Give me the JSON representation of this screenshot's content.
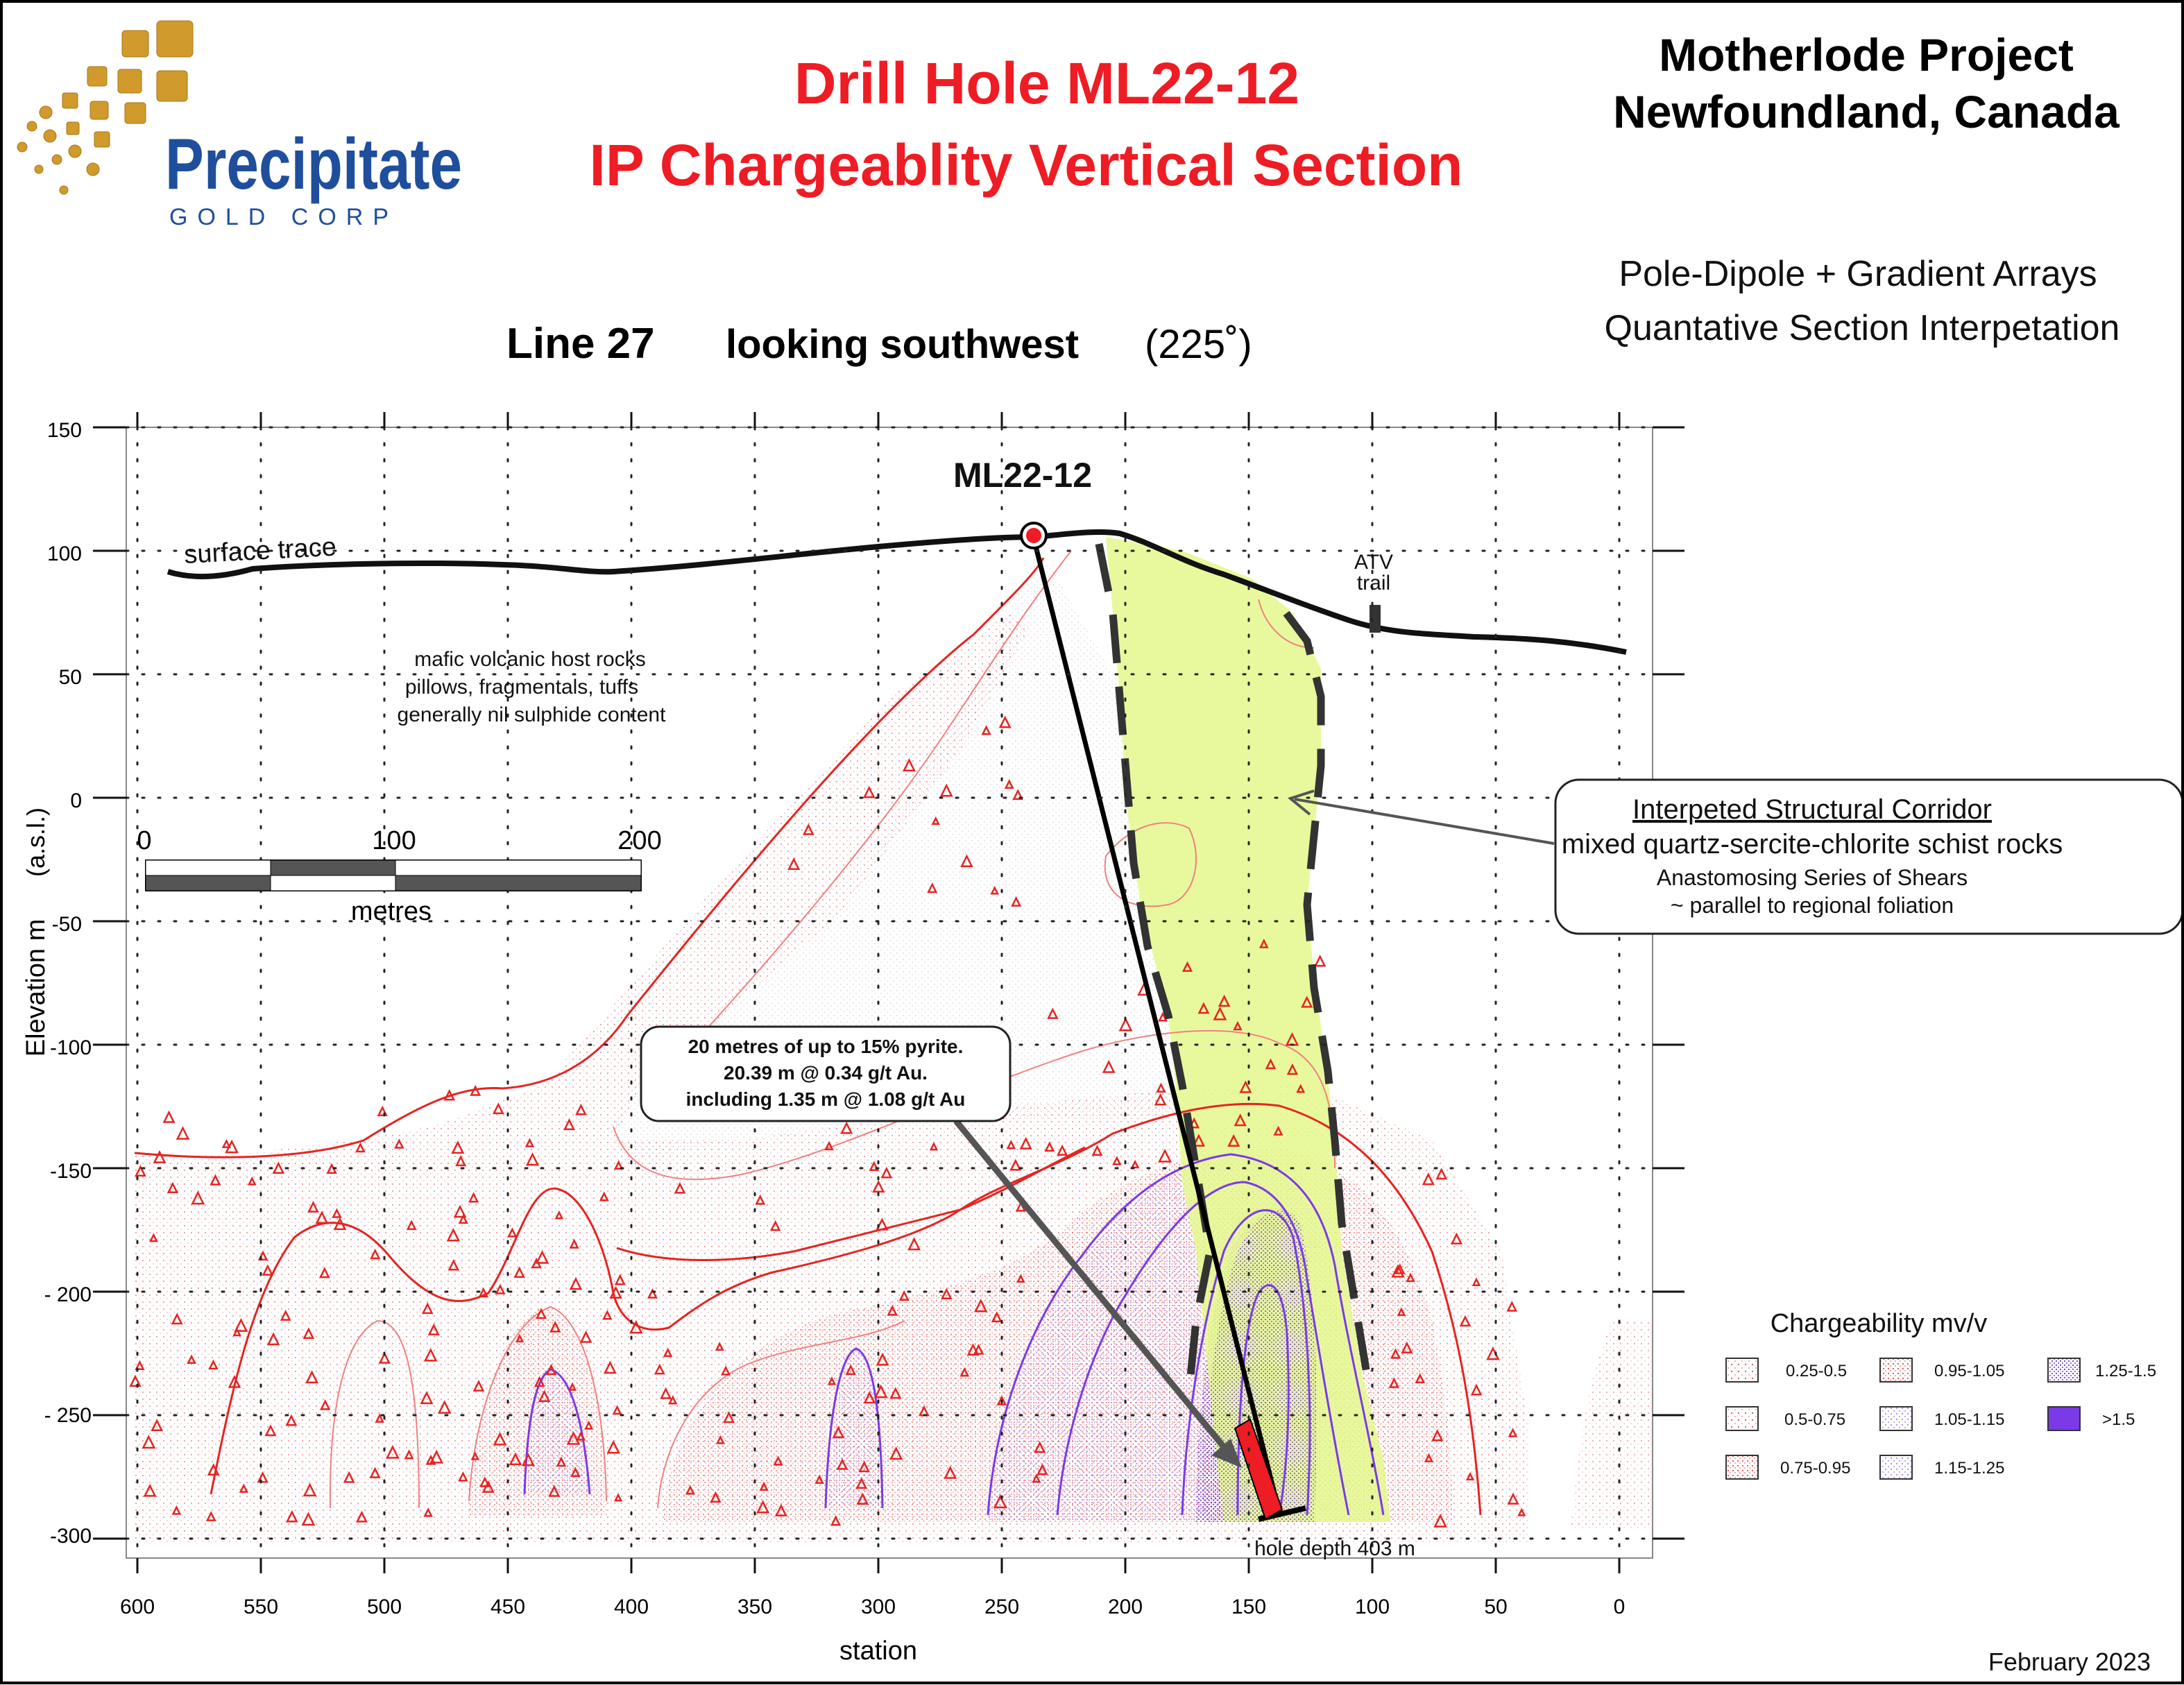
{
  "company": {
    "name": "Precipitate",
    "subname": "GOLD CORP",
    "gold_color": "#d09a2c",
    "blue_color": "#1f4e9c"
  },
  "title": {
    "line1": "Drill Hole ML22-12",
    "line2": "IP Chargeablity Vertical Section",
    "color": "#ee1c24"
  },
  "project": {
    "line1": "Motherlode Project",
    "line2": "Newfoundland, Canada"
  },
  "method": {
    "line1": "Pole-Dipole + Gradient Arrays",
    "line2": "Quantative Section Interpetation"
  },
  "section": {
    "line_label": "Line 27",
    "view": "looking southwest",
    "azimuth": "(225˚)"
  },
  "axes": {
    "xlabel": "station",
    "ylabel_main": "Elevation m",
    "ylabel_unit": "(a.s.l.)",
    "x_ticks": [
      "600",
      "550",
      "500",
      "450",
      "400",
      "350",
      "300",
      "250",
      "200",
      "150",
      "100",
      "50",
      "0"
    ],
    "y_ticks": [
      "150",
      "100",
      "50",
      "0",
      "-50",
      "-100",
      "-150",
      "- 200",
      "- 250",
      "-300"
    ]
  },
  "hole": {
    "name": "ML22-12",
    "depth_label": "hole depth 403 m"
  },
  "labels": {
    "surface_trace": "surface trace",
    "atv_line1": "ATV",
    "atv_line2": "trail",
    "host1": "mafic volcanic host rocks",
    "host2": "pillows, fragmentals, tuffs",
    "host3": "generally nil sulphide content"
  },
  "scale_bar": {
    "ticks": [
      "0",
      "100",
      "200"
    ],
    "unit": "metres"
  },
  "corridor_callout": {
    "title": "Interpeted Structural Corridor",
    "line2": "mixed quartz-sercite-chlorite schist rocks",
    "line3": "Anastomosing Series of Shears",
    "line4": "~ parallel to regional foliation"
  },
  "intercept_callout": {
    "line1": "20 metres of up to 15% pyrite.",
    "line2": "20.39 m @ 0.34 g/t Au.",
    "line3": "including 1.35 m @ 1.08 g/t Au"
  },
  "legend": {
    "title": "Chargeability mv/v",
    "items": [
      {
        "label": "0.25-0.5",
        "color": "#e84a4a"
      },
      {
        "label": "0.5-0.75",
        "color": "#e02020"
      },
      {
        "label": "0.75-0.95",
        "color": "#cc0000"
      },
      {
        "label": "0.95-1.05",
        "color": "#e83030"
      },
      {
        "label": "1.05-1.15",
        "color": "#9a6ae0"
      },
      {
        "label": "1.15-1.25",
        "color": "#8a5ae0"
      },
      {
        "label": "1.25-1.5",
        "color": "#7a3ae8"
      },
      {
        "label": ">1.5",
        "color": "#6a1ef0"
      }
    ]
  },
  "date": "February 2023"
}
